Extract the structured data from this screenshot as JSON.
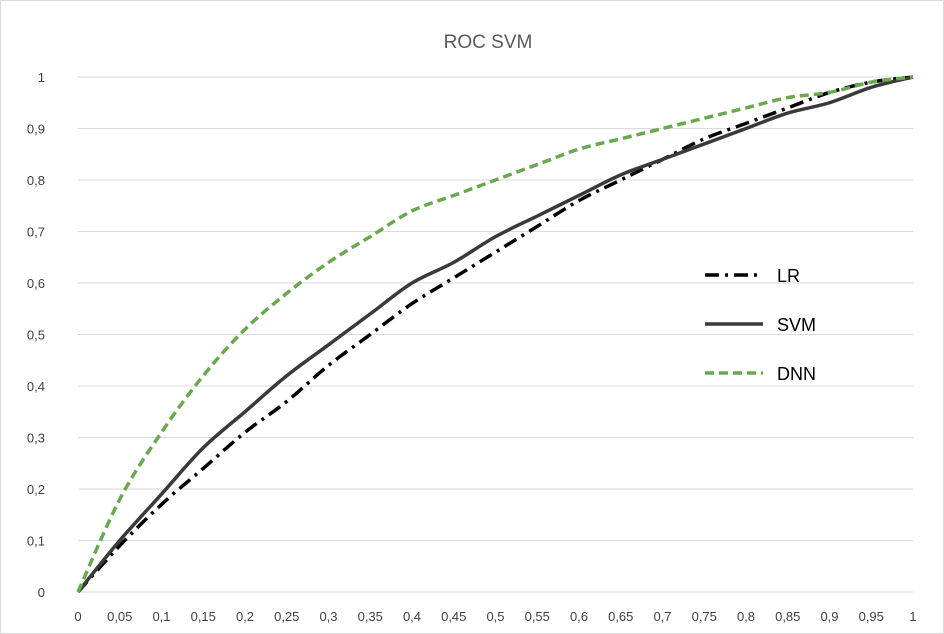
{
  "chart_data": {
    "type": "line",
    "title": "ROC SVM",
    "xlabel": "",
    "ylabel": "",
    "xlim": [
      0,
      1
    ],
    "ylim": [
      0,
      1
    ],
    "grid": true,
    "legend_position": "right",
    "x_ticks": [
      "0",
      "0,05",
      "0,1",
      "0,15",
      "0,2",
      "0,25",
      "0,3",
      "0,35",
      "0,4",
      "0,45",
      "0,5",
      "0,55",
      "0,6",
      "0,65",
      "0,7",
      "0,75",
      "0,8",
      "0,85",
      "0,9",
      "0,95",
      "1"
    ],
    "y_ticks": [
      "0",
      "0,1",
      "0,2",
      "0,3",
      "0,4",
      "0,5",
      "0,6",
      "0,7",
      "0,8",
      "0,9",
      "1"
    ],
    "x": [
      0,
      0.05,
      0.1,
      0.15,
      0.2,
      0.25,
      0.3,
      0.35,
      0.4,
      0.45,
      0.5,
      0.55,
      0.6,
      0.65,
      0.7,
      0.75,
      0.8,
      0.85,
      0.9,
      0.95,
      1
    ],
    "series": [
      {
        "name": "LR",
        "color": "#000000",
        "dash": "dash-dot",
        "values": [
          0,
          0.09,
          0.17,
          0.24,
          0.31,
          0.37,
          0.44,
          0.5,
          0.56,
          0.61,
          0.66,
          0.71,
          0.76,
          0.8,
          0.84,
          0.88,
          0.91,
          0.94,
          0.97,
          0.99,
          1
        ]
      },
      {
        "name": "SVM",
        "color": "#3a3a3a",
        "dash": "solid",
        "values": [
          0,
          0.1,
          0.19,
          0.28,
          0.35,
          0.42,
          0.48,
          0.54,
          0.6,
          0.64,
          0.69,
          0.73,
          0.77,
          0.81,
          0.84,
          0.87,
          0.9,
          0.93,
          0.95,
          0.98,
          1
        ]
      },
      {
        "name": "DNN",
        "color": "#6aa84f",
        "dash": "dashed",
        "values": [
          0,
          0.18,
          0.31,
          0.42,
          0.51,
          0.58,
          0.64,
          0.69,
          0.74,
          0.77,
          0.8,
          0.83,
          0.86,
          0.88,
          0.9,
          0.92,
          0.94,
          0.96,
          0.97,
          0.99,
          1
        ]
      }
    ]
  }
}
